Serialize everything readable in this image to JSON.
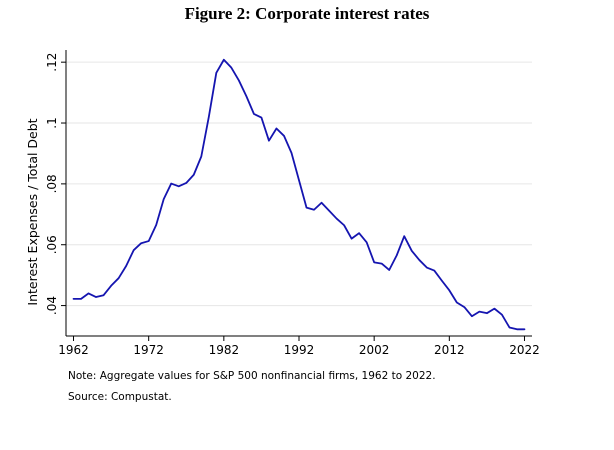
{
  "chart_data": {
    "type": "line",
    "title": "Figure 2: Corporate interest rates",
    "xlabel": "",
    "ylabel": "Interest Expenses / Total Debt",
    "xlim": [
      1961,
      2023
    ],
    "ylim": [
      0.03,
      0.124
    ],
    "xticks": [
      1962,
      1972,
      1982,
      1992,
      2002,
      2012,
      2022
    ],
    "xtick_labels": [
      "1962",
      "1972",
      "1982",
      "1992",
      "2002",
      "2012",
      "2022"
    ],
    "yticks": [
      0.04,
      0.06,
      0.08,
      0.1,
      0.12
    ],
    "ytick_labels": [
      ".04",
      ".06",
      ".08",
      ".1",
      ".12"
    ],
    "grid": true,
    "color": "#1515b0",
    "x": [
      1962,
      1963,
      1964,
      1965,
      1966,
      1967,
      1968,
      1969,
      1970,
      1971,
      1972,
      1973,
      1974,
      1975,
      1976,
      1977,
      1978,
      1979,
      1980,
      1981,
      1982,
      1983,
      1984,
      1985,
      1986,
      1987,
      1988,
      1989,
      1990,
      1991,
      1992,
      1993,
      1994,
      1995,
      1996,
      1997,
      1998,
      1999,
      2000,
      2001,
      2002,
      2003,
      2004,
      2005,
      2006,
      2007,
      2008,
      2009,
      2010,
      2011,
      2012,
      2013,
      2014,
      2015,
      2016,
      2017,
      2018,
      2019,
      2020,
      2021,
      2022
    ],
    "y": [
      0.0422,
      0.0422,
      0.044,
      0.0428,
      0.0434,
      0.0465,
      0.049,
      0.053,
      0.0582,
      0.0605,
      0.0612,
      0.0665,
      0.075,
      0.0801,
      0.0792,
      0.0803,
      0.083,
      0.089,
      0.102,
      0.1165,
      0.1208,
      0.1182,
      0.114,
      0.1088,
      0.103,
      0.1018,
      0.0942,
      0.0982,
      0.0958,
      0.0902,
      0.0812,
      0.0722,
      0.0715,
      0.0738,
      0.0712,
      0.0686,
      0.0664,
      0.062,
      0.0638,
      0.0608,
      0.0542,
      0.0538,
      0.0517,
      0.0565,
      0.0628,
      0.058,
      0.055,
      0.0525,
      0.0515,
      0.0482,
      0.045,
      0.041,
      0.0395,
      0.0365,
      0.038,
      0.0375,
      0.039,
      0.037,
      0.0328,
      0.0322,
      0.0322
    ]
  },
  "notes": {
    "note": "Note: Aggregate values for S&P 500 nonfinancial firms, 1962 to 2022.",
    "source": "Source: Compustat."
  }
}
